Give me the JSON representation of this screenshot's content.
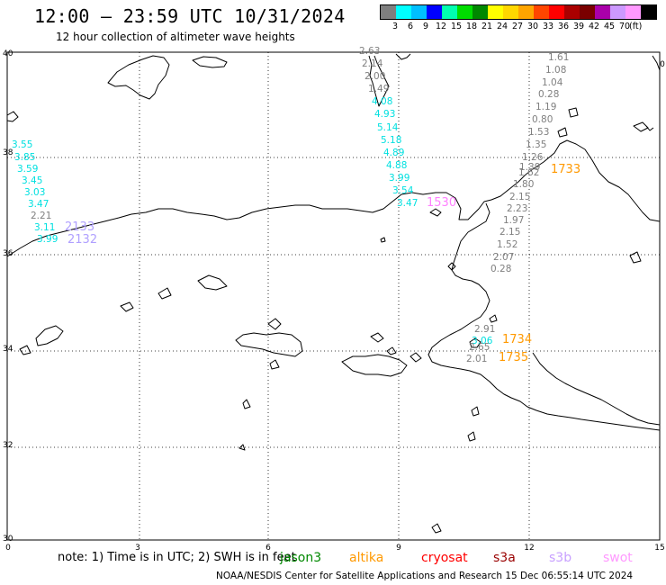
{
  "header": {
    "title": "12:00 – 23:59 UTC 10/31/2024",
    "subtitle": "12 hour collection of altimeter wave heights"
  },
  "legend": {
    "colors": [
      "#7f7f7f",
      "#00ffff",
      "#00bfff",
      "#0000ff",
      "#00ffb0",
      "#00dd00",
      "#008800",
      "#ffff00",
      "#ffd700",
      "#ffa500",
      "#ff4500",
      "#ff0000",
      "#aa0000",
      "#7a0000",
      "#aa00aa",
      "#cc99ff",
      "#ff99ff",
      "#000000"
    ],
    "labels": [
      "3",
      "6",
      "9",
      "12",
      "15",
      "18",
      "21",
      "24",
      "27",
      "30",
      "33",
      "36",
      "39",
      "42",
      "45",
      "70",
      "(ft)"
    ]
  },
  "axes": {
    "y_ticks": [
      "40",
      "38",
      "36",
      "34",
      "32",
      "30"
    ],
    "x_ticks": [
      "0",
      "3",
      "6",
      "9",
      "12",
      "15"
    ],
    "right_edge_label": "0"
  },
  "observations": {
    "colors": {
      "cyan": "#00e0e0",
      "gray": "#808080",
      "orange": "#ff9900",
      "pink": "#ff80ff",
      "lavender": "#b0a0ff"
    },
    "track_west_cyan": [
      "3.55",
      "3.85",
      "3.59",
      "3.45",
      "3.03",
      "3.47",
      "3.11",
      "3.99"
    ],
    "track_west_gray": "2.21",
    "track_west_ids": [
      "2133",
      "2132"
    ],
    "track_center_gray": [
      "2.63",
      "2.14",
      "2.00",
      "1.49"
    ],
    "track_center_cyan": [
      "4.08",
      "4.93",
      "5.14",
      "5.18",
      "4.89",
      "4.88",
      "3.99",
      "3.54",
      "3.47"
    ],
    "track_center_id": "1530",
    "track_east_gray": [
      "1.61",
      "1.08",
      "1.04",
      "0.28",
      "1.19",
      "0.80",
      "1.53",
      "1.35",
      "1.26",
      "1.39",
      "1.62",
      "1.80",
      "2.15",
      "2.23",
      "1.97",
      "2.15",
      "1.52",
      "2.07",
      "0.28"
    ],
    "track_east_id": "1733",
    "track_se_gray": [
      "2.91",
      "2.65",
      "2.01"
    ],
    "track_se_cyan": "3.06",
    "track_se_ids": [
      "1734",
      "1735"
    ]
  },
  "note": "note:  1) Time is in UTC;  2) SWH is in feet",
  "satellites": [
    {
      "name": "jason3",
      "color": "#008800"
    },
    {
      "name": "altika",
      "color": "#ff9900"
    },
    {
      "name": "cryosat",
      "color": "#ff0000"
    },
    {
      "name": "s3a",
      "color": "#990000"
    },
    {
      "name": "s3b",
      "color": "#c8a0ff"
    },
    {
      "name": "swot",
      "color": "#ff99ff"
    }
  ],
  "footer": "NOAA/NESDIS Center for Satellite Applications and Research    15 Dec 06:55:14 UTC 2024"
}
